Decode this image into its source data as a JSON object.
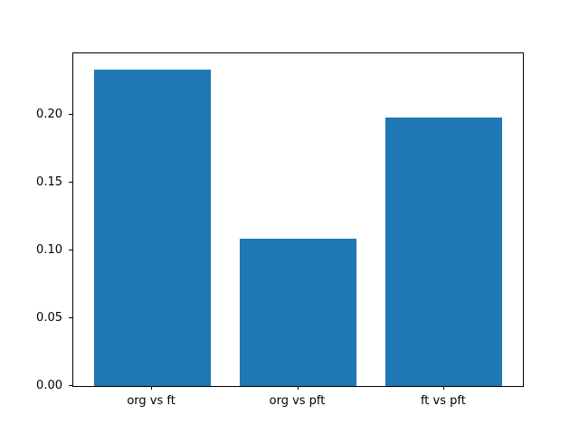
{
  "chart_data": {
    "type": "bar",
    "categories": [
      "org vs ft",
      "org vs pft",
      "ft vs pft"
    ],
    "values": [
      0.234,
      0.109,
      0.198
    ],
    "title": "",
    "xlabel": "",
    "ylabel": "",
    "ylim": [
      0,
      0.2457
    ],
    "xlim": [
      -0.54,
      2.54
    ],
    "bar_width": 0.8,
    "yticks": [
      0.0,
      0.05,
      0.1,
      0.15,
      0.2
    ],
    "ytick_labels": [
      "0.00",
      "0.05",
      "0.10",
      "0.15",
      "0.20"
    ],
    "bar_color": "#1f77b4",
    "spine_color": "#000000",
    "background_color": "#ffffff",
    "grid": false,
    "legend": null
  }
}
